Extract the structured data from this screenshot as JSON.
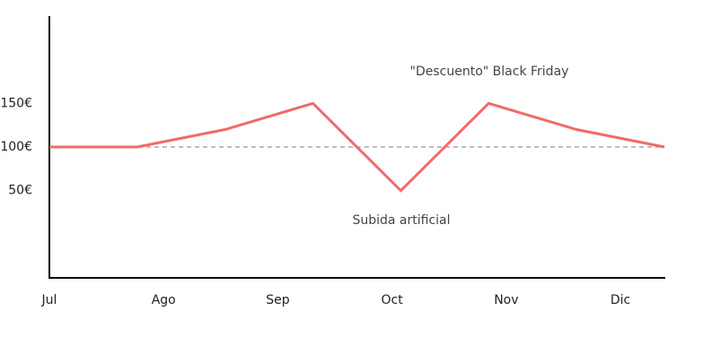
{
  "chart_data": {
    "type": "line",
    "x": [
      0,
      1,
      2,
      3,
      4,
      5,
      6,
      7
    ],
    "series": [
      {
        "color": "#f06b6b",
        "values": [
          100,
          100,
          120,
          150,
          50,
          150,
          120,
          100
        ]
      }
    ],
    "xlim": [
      0,
      7
    ],
    "xticks": [
      {
        "value": 0,
        "label": "Jul"
      },
      {
        "value": 1.3,
        "label": "Ago"
      },
      {
        "value": 2.6,
        "label": "Sep"
      },
      {
        "value": 3.9,
        "label": "Oct"
      },
      {
        "value": 5.2,
        "label": "Nov"
      },
      {
        "value": 6.5,
        "label": "Dic"
      }
    ],
    "ylim": [
      -50,
      250
    ],
    "yticks": [
      {
        "value": 50,
        "label": "50€"
      },
      {
        "value": 100,
        "label": "100€"
      },
      {
        "value": 150,
        "label": "150€"
      }
    ],
    "reference_line": {
      "value": 100,
      "color": "#aaaaaa"
    },
    "annotations": [
      "\"Descuento\" Black Friday",
      "Subida artificial"
    ]
  }
}
